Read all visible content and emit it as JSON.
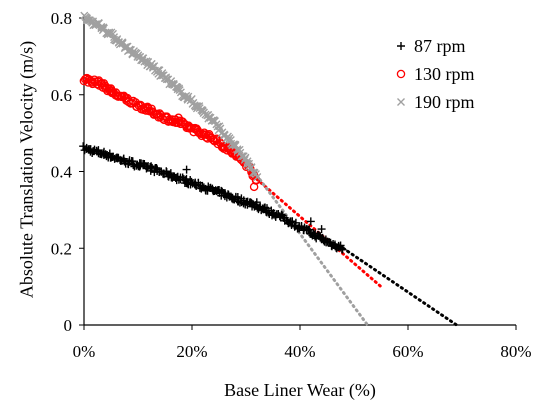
{
  "chart_data": {
    "type": "scatter",
    "title": "",
    "xlabel": "Base Liner Wear (%)",
    "ylabel": "Absolute Translation Velocity (m/s)",
    "xlim": [
      0,
      80
    ],
    "ylim": [
      0,
      0.8
    ],
    "x_ticks": [
      "0%",
      "20%",
      "40%",
      "60%",
      "80%"
    ],
    "y_ticks": [
      "0",
      "0.2",
      "0.4",
      "0.6",
      "0.8"
    ],
    "grid": false,
    "legend_position": "top-right",
    "series": [
      {
        "name": "87 rpm",
        "marker": "+",
        "color": "#000000",
        "x_range": [
          0,
          48
        ],
        "points": [
          [
            0,
            0.46
          ],
          [
            4,
            0.445
          ],
          [
            8,
            0.425
          ],
          [
            12,
            0.41
          ],
          [
            16,
            0.39
          ],
          [
            20,
            0.37
          ],
          [
            24,
            0.35
          ],
          [
            28,
            0.33
          ],
          [
            32,
            0.31
          ],
          [
            36,
            0.285
          ],
          [
            40,
            0.255
          ],
          [
            42,
            0.24
          ],
          [
            44,
            0.225
          ],
          [
            46,
            0.21
          ],
          [
            48,
            0.2
          ]
        ],
        "outliers": [
          [
            19,
            0.405
          ],
          [
            32,
            0.32
          ],
          [
            42,
            0.27
          ],
          [
            44,
            0.25
          ]
        ],
        "trend": {
          "from": [
            48,
            0.2
          ],
          "to": [
            69,
            0
          ]
        }
      },
      {
        "name": "130 rpm",
        "marker": "o",
        "color": "#ff0000",
        "x_range": [
          0,
          32
        ],
        "points": [
          [
            0,
            0.64
          ],
          [
            3,
            0.63
          ],
          [
            6,
            0.6
          ],
          [
            9,
            0.58
          ],
          [
            12,
            0.56
          ],
          [
            15,
            0.54
          ],
          [
            18,
            0.525
          ],
          [
            21,
            0.505
          ],
          [
            24,
            0.485
          ],
          [
            27,
            0.455
          ],
          [
            30,
            0.42
          ],
          [
            32,
            0.38
          ]
        ],
        "outliers": [
          [
            17.5,
            0.54
          ],
          [
            31.5,
            0.36
          ]
        ],
        "trend": {
          "from": [
            32,
            0.38
          ],
          "to": [
            55,
            0.1
          ]
        }
      },
      {
        "name": "190 rpm",
        "marker": "x",
        "color": "#a0a0a0",
        "x_range": [
          0,
          32
        ],
        "points": [
          [
            0,
            0.8
          ],
          [
            3,
            0.78
          ],
          [
            6,
            0.745
          ],
          [
            9,
            0.71
          ],
          [
            12,
            0.68
          ],
          [
            15,
            0.645
          ],
          [
            18,
            0.605
          ],
          [
            21,
            0.57
          ],
          [
            24,
            0.53
          ],
          [
            27,
            0.48
          ],
          [
            30,
            0.43
          ],
          [
            32,
            0.39
          ]
        ],
        "outliers": [],
        "trend": {
          "from": [
            32,
            0.39
          ],
          "to": [
            52.5,
            0
          ]
        }
      }
    ]
  }
}
